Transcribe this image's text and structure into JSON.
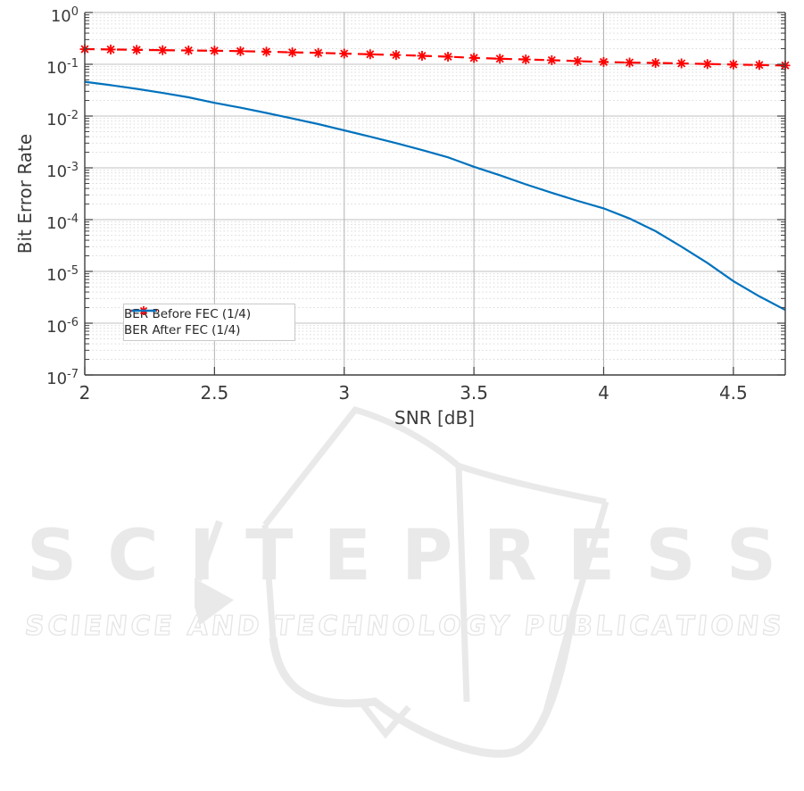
{
  "watermark": {
    "brand": "SCITEPRESS",
    "tagline": "SCIENCE AND TECHNOLOGY PUBLICATIONS",
    "color": "#e9e9e9"
  },
  "chart_data": {
    "type": "line",
    "title": "",
    "xlabel": "SNR [dB]",
    "ylabel": "Bit Error Rate",
    "y_scale": "log",
    "xlim": [
      2,
      4.7
    ],
    "ylim": [
      1e-07,
      1
    ],
    "x_ticks": [
      2,
      2.5,
      3,
      3.5,
      4,
      4.5
    ],
    "x_tick_labels": [
      "2",
      "2.5",
      "3",
      "3.5",
      "4",
      "4.5"
    ],
    "y_tick_exponents": [
      0,
      -1,
      -2,
      -3,
      -4,
      -5,
      -6,
      -7
    ],
    "grid": true,
    "legend_position": "southwest-inside",
    "legend_border_color": "#c9c9c9",
    "x": [
      2.0,
      2.1,
      2.2,
      2.3,
      2.4,
      2.5,
      2.6,
      2.7,
      2.8,
      2.9,
      3.0,
      3.1,
      3.2,
      3.3,
      3.4,
      3.5,
      3.6,
      3.7,
      3.8,
      3.9,
      4.0,
      4.1,
      4.2,
      4.3,
      4.4,
      4.5,
      4.6,
      4.7
    ],
    "series": [
      {
        "name": "BER Before FEC (1/4)",
        "color": "#ff0000",
        "style": "dashed",
        "marker": "asterisk",
        "values": [
          0.196,
          0.193,
          0.19,
          0.187,
          0.185,
          0.183,
          0.179,
          0.175,
          0.17,
          0.166,
          0.161,
          0.156,
          0.151,
          0.146,
          0.14,
          0.133,
          0.128,
          0.124,
          0.12,
          0.115,
          0.111,
          0.108,
          0.106,
          0.104,
          0.101,
          0.099,
          0.097,
          0.095
        ]
      },
      {
        "name": "BER After FEC (1/4)",
        "color": "#0072bd",
        "style": "solid",
        "marker": "none",
        "values": [
          0.046,
          0.0395,
          0.0335,
          0.028,
          0.023,
          0.018,
          0.0145,
          0.0115,
          0.009,
          0.007,
          0.0053,
          0.004,
          0.003,
          0.0022,
          0.0016,
          0.00105,
          0.00072,
          0.00048,
          0.00033,
          0.00023,
          0.000165,
          0.000105,
          6e-05,
          3e-05,
          1.45e-05,
          6.5e-06,
          3.3e-06,
          1.8e-06
        ]
      }
    ]
  }
}
